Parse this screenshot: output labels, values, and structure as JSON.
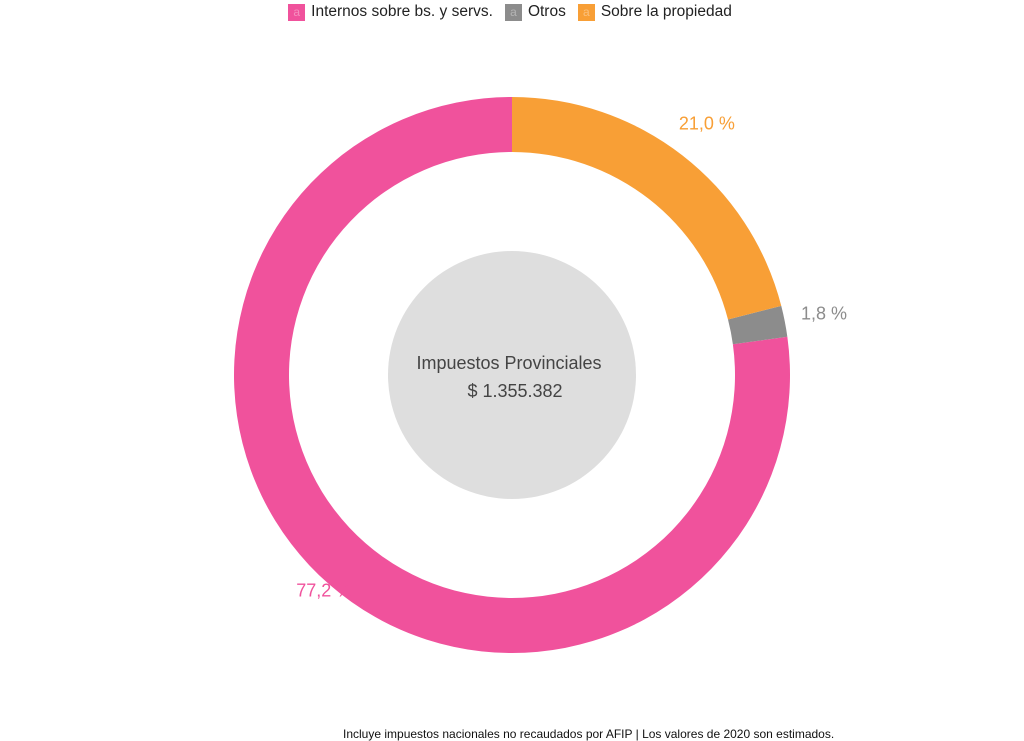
{
  "chart_data": {
    "type": "pie",
    "variant": "donut",
    "categories": [
      "Internos sobre bs. y servs.",
      "Otros",
      "Sobre la propiedad"
    ],
    "values": [
      77.2,
      1.8,
      21.0
    ],
    "value_labels": [
      "77,2 %",
      "1,8 %",
      "21,0 %"
    ],
    "colors": [
      "#F0529C",
      "#8C8C8C",
      "#F89F36"
    ],
    "legend_placement": "top",
    "legend_key_glyph": "a",
    "center_label": {
      "title": "Impuestos Provinciales",
      "value": "$ 1.355.382",
      "background_color": "#DEDEDE"
    },
    "caption": "Incluye impuestos nacionales no recaudados por AFIP | Los valores de 2020 son estimados."
  }
}
